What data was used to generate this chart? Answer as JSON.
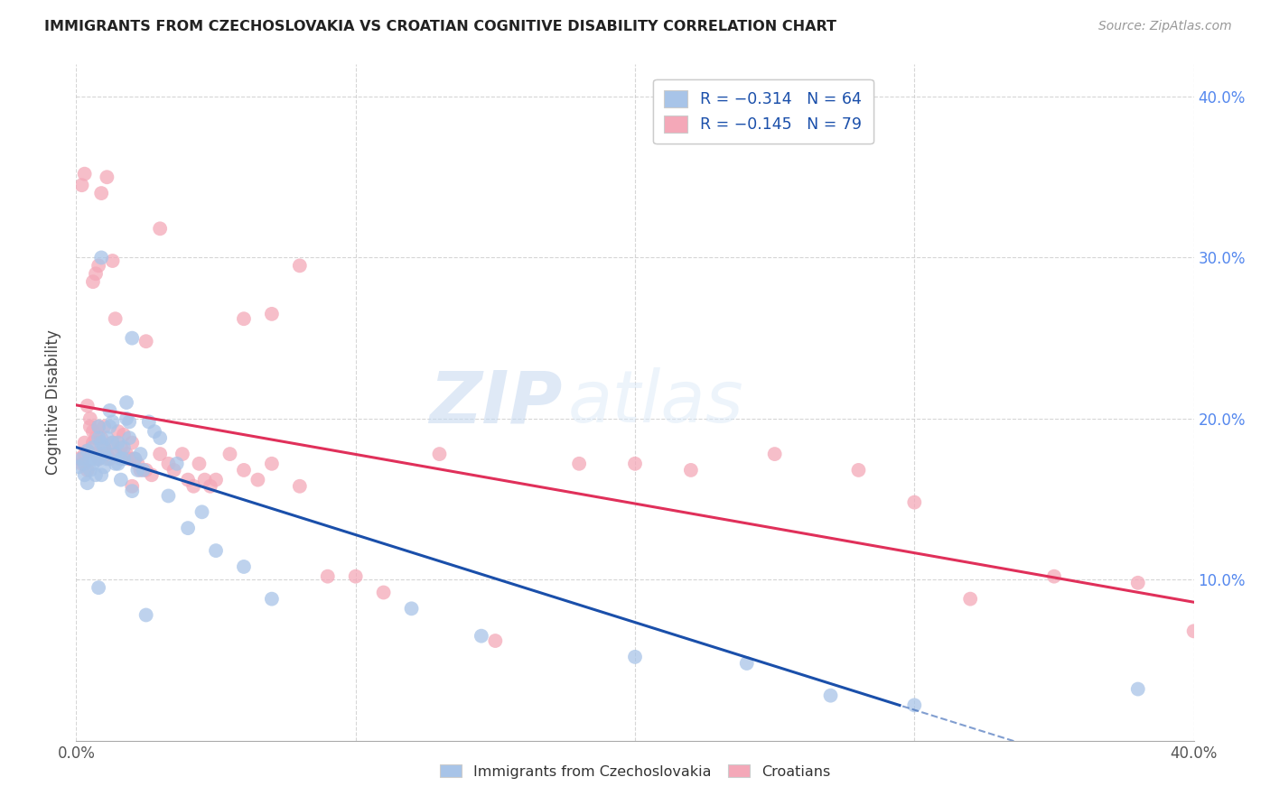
{
  "title": "IMMIGRANTS FROM CZECHOSLOVAKIA VS CROATIAN COGNITIVE DISABILITY CORRELATION CHART",
  "source": "Source: ZipAtlas.com",
  "ylabel": "Cognitive Disability",
  "x_min": 0.0,
  "x_max": 0.4,
  "y_min": 0.0,
  "y_max": 0.42,
  "x_tick_vals": [
    0.0,
    0.1,
    0.2,
    0.3,
    0.4
  ],
  "x_tick_labels": [
    "0.0%",
    "",
    "",
    "",
    "40.0%"
  ],
  "y_tick_vals": [
    0.1,
    0.2,
    0.3,
    0.4
  ],
  "y_tick_labels_right": [
    "10.0%",
    "20.0%",
    "30.0%",
    "40.0%"
  ],
  "legend_blue_R": "R = −0.314",
  "legend_blue_N": "N = 64",
  "legend_pink_R": "R = −0.145",
  "legend_pink_N": "N = 79",
  "blue_color": "#a8c4e8",
  "pink_color": "#f4a8b8",
  "blue_line_color": "#1a4faa",
  "pink_line_color": "#e0305a",
  "watermark_zip": "ZIP",
  "watermark_atlas": "atlas",
  "blue_scatter_x": [
    0.001,
    0.002,
    0.003,
    0.003,
    0.004,
    0.004,
    0.005,
    0.005,
    0.006,
    0.006,
    0.007,
    0.007,
    0.008,
    0.008,
    0.008,
    0.009,
    0.009,
    0.01,
    0.01,
    0.01,
    0.011,
    0.011,
    0.012,
    0.012,
    0.013,
    0.013,
    0.014,
    0.014,
    0.015,
    0.015,
    0.016,
    0.016,
    0.017,
    0.017,
    0.018,
    0.018,
    0.019,
    0.019,
    0.02,
    0.021,
    0.022,
    0.023,
    0.024,
    0.026,
    0.028,
    0.03,
    0.033,
    0.036,
    0.04,
    0.045,
    0.05,
    0.06,
    0.07,
    0.12,
    0.145,
    0.2,
    0.24,
    0.27,
    0.3,
    0.38,
    0.02,
    0.025,
    0.008,
    0.009
  ],
  "blue_scatter_y": [
    0.17,
    0.175,
    0.165,
    0.172,
    0.16,
    0.18,
    0.168,
    0.175,
    0.172,
    0.182,
    0.175,
    0.165,
    0.175,
    0.188,
    0.195,
    0.185,
    0.165,
    0.178,
    0.17,
    0.182,
    0.188,
    0.175,
    0.195,
    0.205,
    0.198,
    0.185,
    0.172,
    0.178,
    0.185,
    0.172,
    0.175,
    0.162,
    0.182,
    0.175,
    0.2,
    0.21,
    0.198,
    0.188,
    0.155,
    0.175,
    0.168,
    0.178,
    0.168,
    0.198,
    0.192,
    0.188,
    0.152,
    0.172,
    0.132,
    0.142,
    0.118,
    0.108,
    0.088,
    0.082,
    0.065,
    0.052,
    0.048,
    0.028,
    0.022,
    0.032,
    0.25,
    0.078,
    0.095,
    0.3
  ],
  "pink_scatter_x": [
    0.001,
    0.002,
    0.003,
    0.003,
    0.004,
    0.004,
    0.005,
    0.005,
    0.006,
    0.006,
    0.007,
    0.007,
    0.008,
    0.008,
    0.009,
    0.009,
    0.01,
    0.01,
    0.011,
    0.012,
    0.013,
    0.014,
    0.015,
    0.016,
    0.017,
    0.018,
    0.019,
    0.02,
    0.021,
    0.022,
    0.023,
    0.025,
    0.027,
    0.03,
    0.033,
    0.035,
    0.038,
    0.04,
    0.042,
    0.044,
    0.046,
    0.048,
    0.05,
    0.055,
    0.06,
    0.065,
    0.07,
    0.08,
    0.09,
    0.1,
    0.11,
    0.13,
    0.15,
    0.18,
    0.2,
    0.22,
    0.25,
    0.28,
    0.3,
    0.32,
    0.35,
    0.38,
    0.4,
    0.06,
    0.07,
    0.08,
    0.025,
    0.03,
    0.02,
    0.014,
    0.013,
    0.011,
    0.009,
    0.008,
    0.007,
    0.006,
    0.004,
    0.002,
    0.003
  ],
  "pink_scatter_y": [
    0.175,
    0.172,
    0.178,
    0.185,
    0.168,
    0.18,
    0.2,
    0.195,
    0.185,
    0.192,
    0.178,
    0.188,
    0.195,
    0.175,
    0.188,
    0.178,
    0.182,
    0.195,
    0.178,
    0.175,
    0.185,
    0.178,
    0.192,
    0.182,
    0.19,
    0.178,
    0.175,
    0.185,
    0.175,
    0.172,
    0.168,
    0.168,
    0.165,
    0.178,
    0.172,
    0.168,
    0.178,
    0.162,
    0.158,
    0.172,
    0.162,
    0.158,
    0.162,
    0.178,
    0.168,
    0.162,
    0.172,
    0.158,
    0.102,
    0.102,
    0.092,
    0.178,
    0.062,
    0.172,
    0.172,
    0.168,
    0.178,
    0.168,
    0.148,
    0.088,
    0.102,
    0.098,
    0.068,
    0.262,
    0.265,
    0.295,
    0.248,
    0.318,
    0.158,
    0.262,
    0.298,
    0.35,
    0.34,
    0.295,
    0.29,
    0.285,
    0.208,
    0.345,
    0.352
  ]
}
